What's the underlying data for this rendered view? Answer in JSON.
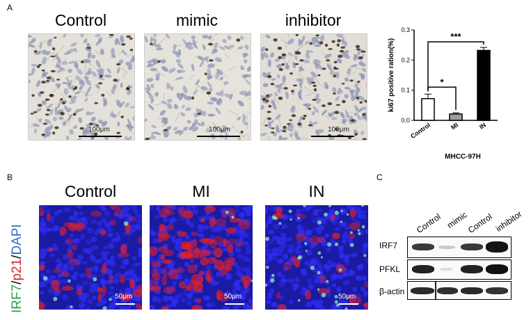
{
  "panel_a": {
    "letter": "A",
    "titles": [
      "Control",
      "mimic",
      "inhibitor"
    ],
    "scale_label": "100μm"
  },
  "panel_b": {
    "letter": "B",
    "titles": [
      "Control",
      "MI",
      "IN"
    ],
    "stain_parts": [
      "IRF7",
      "/",
      "p21",
      "/",
      "DAPI"
    ],
    "scale_label": "50μm"
  },
  "panel_c": {
    "letter": "C",
    "lanes": [
      "Control",
      "mimic",
      "Control",
      "inhibitor"
    ],
    "rows": [
      "IRF7",
      "PFKL",
      "β-actin"
    ]
  },
  "chart_data": {
    "type": "bar",
    "categories": [
      "Control",
      "MI",
      "IN"
    ],
    "values": [
      0.072,
      0.021,
      0.232
    ],
    "errors": [
      0.015,
      0.004,
      0.01
    ],
    "bar_fills": [
      "#ffffff",
      "#9e9e9e",
      "#000000"
    ],
    "ylabel": "ki67 positive ration(%)",
    "xlabel": "MHCC-97H",
    "ylim": [
      0,
      0.3
    ],
    "yticks": [
      "0.0",
      "0.1",
      "0.2",
      "0.3"
    ],
    "significance": [
      {
        "from": 0,
        "to": 1,
        "label": "*"
      },
      {
        "from": 0,
        "to": 2,
        "label": "***"
      }
    ]
  }
}
